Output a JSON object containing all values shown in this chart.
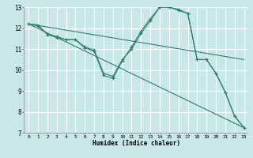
{
  "xlabel": "Humidex (Indice chaleur)",
  "ylabel": "",
  "background_color": "#c8e8e8",
  "grid_color": "#ffffff",
  "line_color": "#2e7d6e",
  "xlim": [
    -0.5,
    23.5
  ],
  "ylim": [
    7,
    13
  ],
  "xticks": [
    0,
    1,
    2,
    3,
    4,
    5,
    6,
    7,
    8,
    9,
    10,
    11,
    12,
    13,
    14,
    15,
    16,
    17,
    18,
    19,
    20,
    21,
    22,
    23
  ],
  "yticks": [
    7,
    8,
    9,
    10,
    11,
    12,
    13
  ],
  "series": [
    {
      "x": [
        0,
        1,
        2,
        3,
        4,
        5,
        6,
        7,
        8,
        9,
        10,
        11,
        12,
        13,
        14,
        15,
        16,
        17,
        18,
        19,
        20,
        21,
        22,
        23
      ],
      "y": [
        12.2,
        12.1,
        11.7,
        11.55,
        11.45,
        11.45,
        11.05,
        10.9,
        9.75,
        9.6,
        10.45,
        11.1,
        11.85,
        12.45,
        13.0,
        13.0,
        12.85,
        12.7,
        10.5,
        10.5,
        9.85,
        8.95,
        7.8,
        7.25
      ],
      "marker": "+"
    },
    {
      "x": [
        0,
        1,
        2,
        3,
        4,
        5,
        6,
        7,
        8,
        9,
        10,
        11,
        12,
        13,
        14,
        15,
        16,
        17,
        18,
        19,
        20,
        21,
        22,
        23
      ],
      "y": [
        12.2,
        12.15,
        11.7,
        11.6,
        11.45,
        11.45,
        11.1,
        10.95,
        9.85,
        9.7,
        10.5,
        11.0,
        11.75,
        12.35,
        13.0,
        13.0,
        12.9,
        12.7,
        10.5,
        10.5,
        9.85,
        8.95,
        7.8,
        7.25
      ],
      "marker": "+"
    },
    {
      "x": [
        0,
        23
      ],
      "y": [
        12.2,
        10.5
      ],
      "marker": null
    },
    {
      "x": [
        0,
        23
      ],
      "y": [
        12.2,
        7.25
      ],
      "marker": null
    }
  ]
}
